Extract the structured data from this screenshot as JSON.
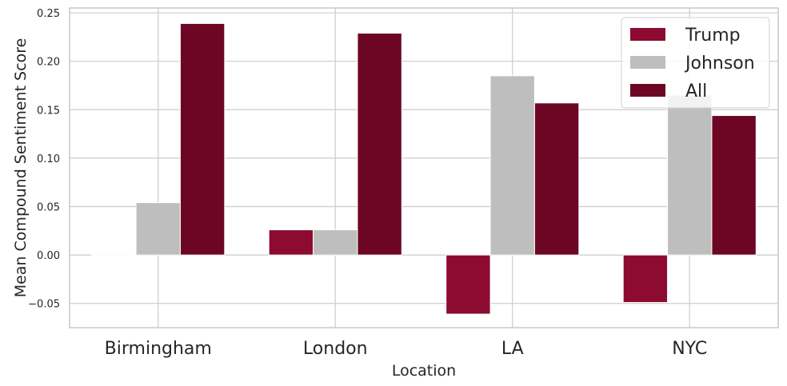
{
  "chart_data": {
    "type": "bar",
    "title": "",
    "xlabel": "Location",
    "ylabel": "Mean Compound Sentiment Score",
    "categories": [
      "Birmingham",
      "London",
      "LA",
      "NYC"
    ],
    "series": [
      {
        "name": "Trump",
        "color": "#8d0a30",
        "values": [
          0.0,
          0.026,
          -0.061,
          -0.049
        ]
      },
      {
        "name": "Johnson",
        "color": "#bebebe",
        "values": [
          0.054,
          0.026,
          0.185,
          0.165
        ]
      },
      {
        "name": "All",
        "color": "#6d0624",
        "values": [
          0.239,
          0.229,
          0.157,
          0.144
        ]
      }
    ],
    "ylim": [
      -0.075,
      0.255
    ],
    "yticks": [
      -0.05,
      0.0,
      0.05,
      0.1,
      0.15,
      0.2,
      0.25
    ],
    "ytick_labels": [
      "−0.05",
      "0.00",
      "0.05",
      "0.10",
      "0.15",
      "0.20",
      "0.25"
    ],
    "grid": true,
    "legend": "top-right"
  }
}
